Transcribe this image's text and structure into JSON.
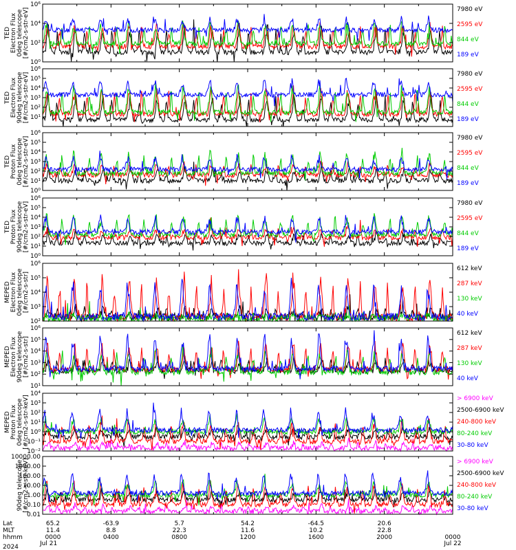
{
  "chart_data": {
    "type": "line",
    "x": {
      "range_hours": [
        0,
        24
      ],
      "rows": [
        {
          "label": "Lat",
          "values": [
            "65.2",
            "-63.9",
            "5.7",
            "54.2",
            "-64.5",
            "20.6"
          ]
        },
        {
          "label": "MLT",
          "values": [
            "11.4",
            "8.8",
            "22.3",
            "11.6",
            "10.2",
            "22.8"
          ]
        },
        {
          "label": "hhmm",
          "values": [
            "0000",
            "0400",
            "0800",
            "1200",
            "1600",
            "2000",
            "0000"
          ]
        }
      ],
      "dates": [
        "Jul 21",
        "2024",
        "Jul 22"
      ]
    },
    "panels": [
      {
        "ylabel": [
          "TED",
          "Electron Flux",
          "0deg telescope",
          "[#/cm2-s-str-eV]"
        ],
        "scale": "log",
        "ylim": [
          1,
          1000000
        ],
        "ytick_labels": [
          "10^0",
          "10^2",
          "10^4",
          "10^6"
        ],
        "series": [
          {
            "name": "7980 eV",
            "color": "#000000",
            "level": 10,
            "peak": 10000
          },
          {
            "name": "2595 eV",
            "color": "#ff0000",
            "level": 40,
            "peak": 20000
          },
          {
            "name": "844 eV",
            "color": "#00cc00",
            "level": 80,
            "peak": 30000
          },
          {
            "name": "189 eV",
            "color": "#0000ff",
            "level": 2000,
            "peak": 60000
          }
        ]
      },
      {
        "ylabel": [
          "TED",
          "Electron Flux",
          "90deg telescope",
          "[#/cm2-s-str-eV]"
        ],
        "scale": "log",
        "ylim": [
          1,
          1000000
        ],
        "ytick_labels": [
          "10^1",
          "10^2",
          "10^3",
          "10^4",
          "10^5",
          "10^6"
        ],
        "series": [
          {
            "name": "7980 eV",
            "color": "#000000",
            "level": 5,
            "peak": 5000
          },
          {
            "name": "2595 eV",
            "color": "#ff0000",
            "level": 20,
            "peak": 20000
          },
          {
            "name": "844 eV",
            "color": "#00cc00",
            "level": 30,
            "peak": 30000
          },
          {
            "name": "189 eV",
            "color": "#0000ff",
            "level": 2000,
            "peak": 100000
          }
        ]
      },
      {
        "ylabel": [
          "TED",
          "Proton Flux",
          "0deg telescope",
          "[#/cm2-s-str-eV]"
        ],
        "scale": "log",
        "ylim": [
          1,
          1000000
        ],
        "ytick_labels": [
          "10^0",
          "10^1",
          "10^2",
          "10^3",
          "10^4",
          "10^5",
          "10^6"
        ],
        "series": [
          {
            "name": "7980 eV",
            "color": "#000000",
            "level": 10,
            "peak": 300
          },
          {
            "name": "2595 eV",
            "color": "#ff0000",
            "level": 40,
            "peak": 1000
          },
          {
            "name": "844 eV",
            "color": "#00cc00",
            "level": 60,
            "peak": 20000
          },
          {
            "name": "189 eV",
            "color": "#0000ff",
            "level": 150,
            "peak": 5000
          }
        ]
      },
      {
        "ylabel": [
          "TED",
          "Proton Flux",
          "90deg telescope",
          "[#/cm2-s-str-eV]"
        ],
        "scale": "log",
        "ylim": [
          1,
          1000000
        ],
        "ytick_labels": [
          "10^0",
          "10^1",
          "10^2",
          "10^3",
          "10^4",
          "10^5",
          "10^6"
        ],
        "series": [
          {
            "name": "7980 eV",
            "color": "#000000",
            "level": 20,
            "peak": 300
          },
          {
            "name": "2595 eV",
            "color": "#ff0000",
            "level": 80,
            "peak": 1000
          },
          {
            "name": "844 eV",
            "color": "#00cc00",
            "level": 150,
            "peak": 30000
          },
          {
            "name": "189 eV",
            "color": "#0000ff",
            "level": 300,
            "peak": 20000
          }
        ]
      },
      {
        "ylabel": [
          "MEPED",
          "Electron Flux",
          "0deg telescope",
          "[#/cm2-s-str]"
        ],
        "scale": "log",
        "ylim": [
          100,
          1000000
        ],
        "ytick_labels": [
          "10^2",
          "10^3",
          "10^4",
          "10^5",
          "10^6"
        ],
        "series": [
          {
            "name": "612 keV",
            "color": "#000000",
            "level": 200,
            "peak": 1000
          },
          {
            "name": "287 keV",
            "color": "#ff0000",
            "level": 180,
            "peak": 300000
          },
          {
            "name": "130 keV",
            "color": "#00cc00",
            "level": 150,
            "peak": 300
          },
          {
            "name": "40 keV",
            "color": "#0000ff",
            "level": 200,
            "peak": 100000
          }
        ]
      },
      {
        "ylabel": [
          "MEPED",
          "Electron Flux",
          "90deg telescope",
          "[#/cm2-s-str]"
        ],
        "scale": "log",
        "ylim": [
          10,
          1000000
        ],
        "ytick_labels": [
          "10^1",
          "10^2",
          "10^3",
          "10^4",
          "10^5",
          "10^6"
        ],
        "series": [
          {
            "name": "612 keV",
            "color": "#000000",
            "level": 200,
            "peak": 3000
          },
          {
            "name": "287 keV",
            "color": "#ff0000",
            "level": 250,
            "peak": 100000
          },
          {
            "name": "130 keV",
            "color": "#00cc00",
            "level": 150,
            "peak": 20000
          },
          {
            "name": "40 keV",
            "color": "#0000ff",
            "level": 300,
            "peak": 500000
          }
        ]
      },
      {
        "ylabel": [
          "MEPED",
          "Proton Flux",
          "0deg telescope",
          "[#/cm2-s-str-keV]"
        ],
        "scale": "log",
        "ylim": [
          0.01,
          10000
        ],
        "ytick_labels": [
          "10^-2",
          "10^-1",
          "10^0",
          "10^1",
          "10^2",
          "10^3",
          "10^4"
        ],
        "series": [
          {
            "name": "> 6900 keV",
            "color": "#ff00ff",
            "level": 0.02,
            "peak": 0.1
          },
          {
            "name": "2500-6900 keV",
            "color": "#000000",
            "level": 0.3,
            "peak": 3
          },
          {
            "name": "240-800 keV",
            "color": "#ff0000",
            "level": 0.1,
            "peak": 30
          },
          {
            "name": "80-240 keV",
            "color": "#00cc00",
            "level": 1,
            "peak": 50
          },
          {
            "name": "30-80 keV",
            "color": "#0000ff",
            "level": 1.5,
            "peak": 300
          }
        ]
      },
      {
        "ylabel": [
          "90deg telescope",
          "[#/cm2-s-str-keV]"
        ],
        "scale": "log",
        "ylim": [
          0.01,
          10000
        ],
        "ytick_labels": [
          "0.01",
          "0.10",
          "1.00",
          "10.00",
          "100.00",
          "1000.00",
          "10000.00"
        ],
        "series": [
          {
            "name": "> 6900 keV",
            "color": "#ff00ff",
            "level": 0.02,
            "peak": 0.1
          },
          {
            "name": "2500-6900 keV",
            "color": "#000000",
            "level": 0.3,
            "peak": 3
          },
          {
            "name": "240-800 keV",
            "color": "#ff0000",
            "level": 0.1,
            "peak": 30
          },
          {
            "name": "80-240 keV",
            "color": "#00cc00",
            "level": 1,
            "peak": 50
          },
          {
            "name": "30-80 keV",
            "color": "#0000ff",
            "level": 1.5,
            "peak": 300
          }
        ]
      }
    ]
  }
}
